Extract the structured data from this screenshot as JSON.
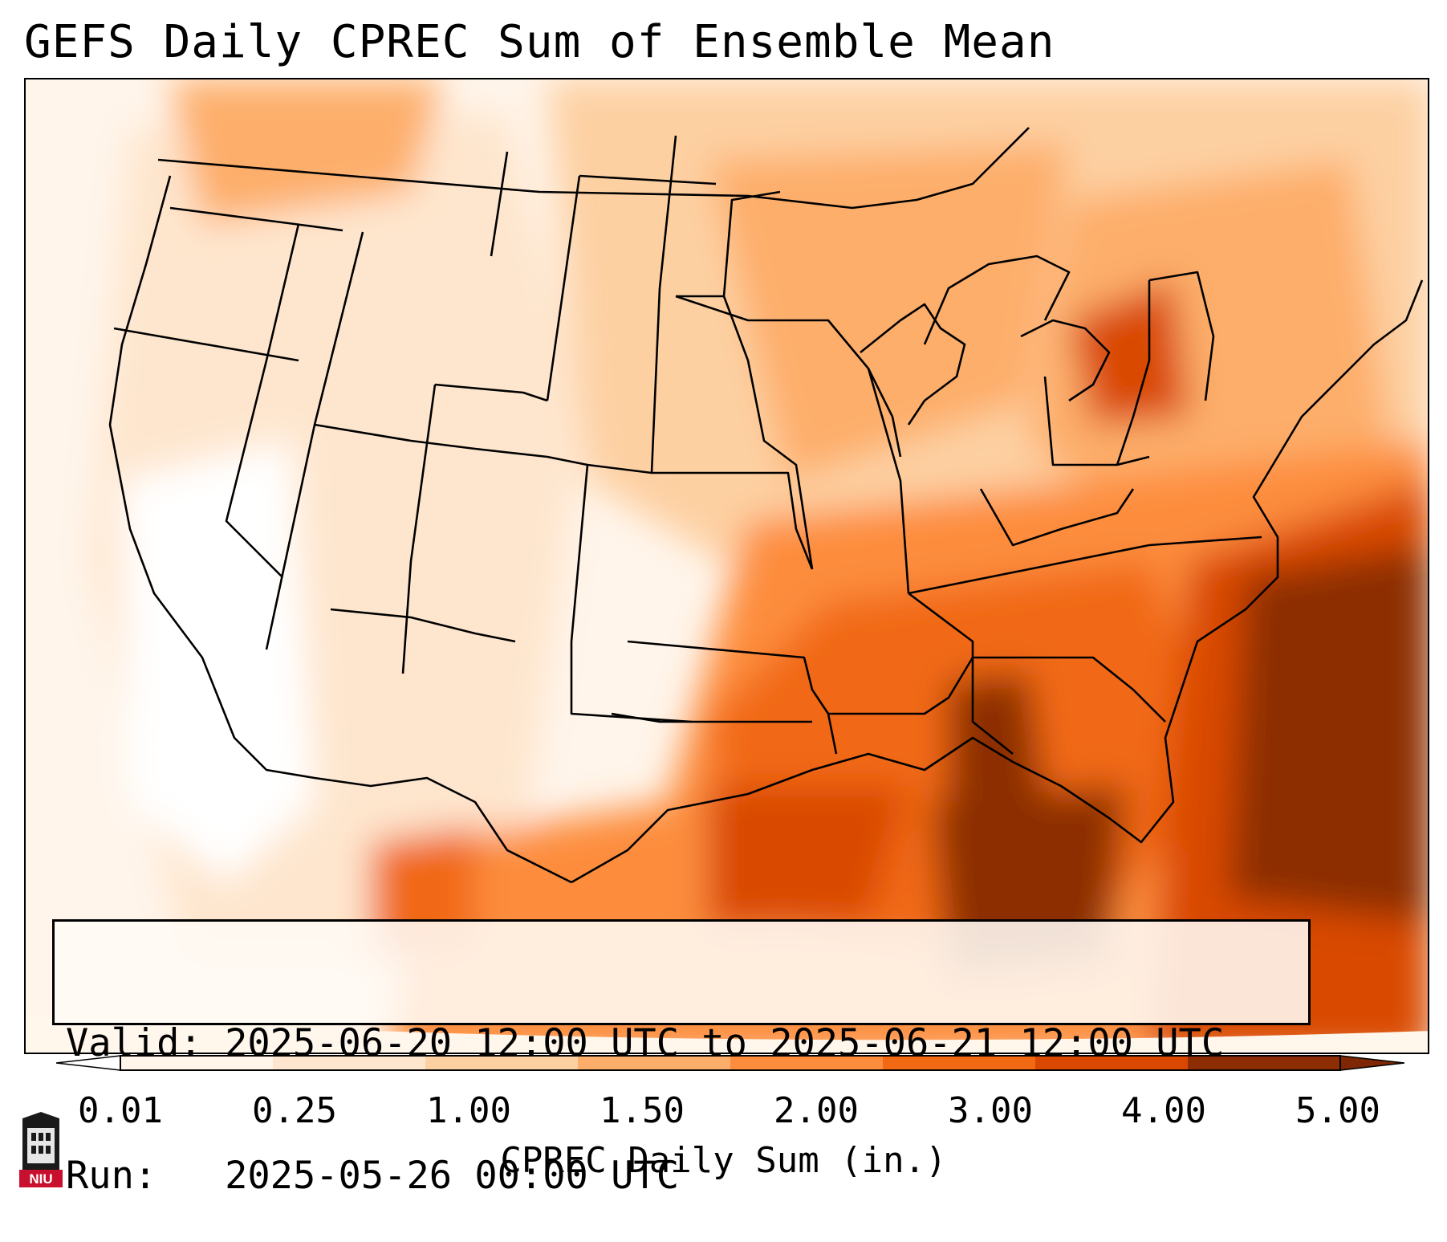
{
  "title": "GEFS Daily CPREC Sum of Ensemble Mean",
  "info": {
    "valid_line": "Valid: 2025-06-20 12:00 UTC to 2025-06-21 12:00 UTC",
    "run_line": "Run:   2025-05-26 00:00 UTC"
  },
  "colorbar": {
    "label": "CPREC Daily Sum (in.)",
    "ticks": [
      "0.01",
      "0.25",
      "1.00",
      "1.50",
      "2.00",
      "3.00",
      "4.00",
      "5.00"
    ],
    "colors": [
      "#fff5eb",
      "#fee6ce",
      "#fdd0a2",
      "#fdae6b",
      "#fd8d3c",
      "#f16913",
      "#d94801",
      "#8c2d04"
    ],
    "under_color": "#ffffff",
    "over_color": "#7f2704"
  },
  "logo": {
    "text": "NIU",
    "colors": {
      "shield": "#1a1a1a",
      "banner": "#c8102e"
    }
  },
  "map": {
    "projection": "lambert-conformal",
    "region": "Contiguous United States",
    "coastline_color": "#000000"
  }
}
